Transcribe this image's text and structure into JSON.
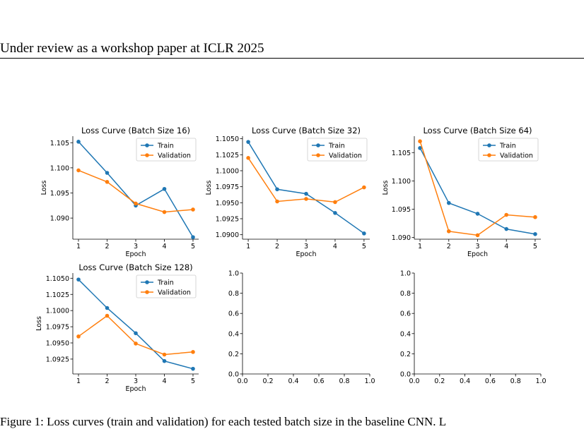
{
  "header": {
    "text": "Under review as a workshop paper at ICLR 2025"
  },
  "caption": {
    "text": "Figure 1: Loss curves (train and validation) for each tested batch size in the baseline CNN. L"
  },
  "colors": {
    "train": "#1f77b4",
    "validation": "#ff7f0e"
  },
  "chart_data": [
    {
      "type": "line",
      "title": "Loss Curve (Batch Size 16)",
      "xlabel": "Epoch",
      "ylabel": "Loss",
      "x": [
        1,
        2,
        3,
        4,
        5
      ],
      "xticks": [
        "1",
        "2",
        "3",
        "4",
        "5"
      ],
      "ylim": [
        1.0858,
        1.1063
      ],
      "yticks": [
        "1.090",
        "1.095",
        "1.100",
        "1.105"
      ],
      "legend_position": "top-right",
      "series": [
        {
          "name": "Train",
          "values": [
            1.1052,
            1.099,
            1.0925,
            1.0958,
            1.0862
          ]
        },
        {
          "name": "Validation",
          "values": [
            1.0995,
            1.0972,
            1.0929,
            1.0912,
            1.0917
          ]
        }
      ]
    },
    {
      "type": "line",
      "title": "Loss Curve (Batch Size 32)",
      "xlabel": "Epoch",
      "ylabel": "Loss",
      "x": [
        1,
        2,
        3,
        4,
        5
      ],
      "xticks": [
        "1",
        "2",
        "3",
        "4",
        "5"
      ],
      "ylim": [
        1.0893,
        1.1054
      ],
      "yticks": [
        "1.0900",
        "1.0925",
        "1.0950",
        "1.0975",
        "1.1000",
        "1.1025",
        "1.1050"
      ],
      "legend_position": "top-right",
      "series": [
        {
          "name": "Train",
          "values": [
            1.1045,
            1.0971,
            1.0964,
            1.0934,
            1.0902
          ]
        },
        {
          "name": "Validation",
          "values": [
            1.102,
            1.0952,
            1.0956,
            1.0951,
            1.0974
          ]
        }
      ]
    },
    {
      "type": "line",
      "title": "Loss Curve (Batch Size 64)",
      "xlabel": "Epoch",
      "ylabel": "Loss",
      "x": [
        1,
        2,
        3,
        4,
        5
      ],
      "xticks": [
        "1",
        "2",
        "3",
        "4",
        "5"
      ],
      "ylim": [
        1.0897,
        1.1079
      ],
      "yticks": [
        "1.090",
        "1.095",
        "1.100",
        "1.105"
      ],
      "legend_position": "top-right",
      "series": [
        {
          "name": "Train",
          "values": [
            1.1058,
            1.0961,
            1.0942,
            1.0915,
            1.0906
          ]
        },
        {
          "name": "Validation",
          "values": [
            1.107,
            1.0911,
            1.0904,
            1.094,
            1.0936
          ]
        }
      ]
    },
    {
      "type": "line",
      "title": "Loss Curve (Batch Size 128)",
      "xlabel": "Epoch",
      "ylabel": "Loss",
      "x": [
        1,
        2,
        3,
        4,
        5
      ],
      "xticks": [
        "1",
        "2",
        "3",
        "4",
        "5"
      ],
      "ylim": [
        1.0902,
        1.1058
      ],
      "yticks": [
        "1.0925",
        "1.0950",
        "1.0975",
        "1.1000",
        "1.1025",
        "1.1050"
      ],
      "legend_position": "top-right",
      "series": [
        {
          "name": "Train",
          "values": [
            1.1048,
            1.1004,
            1.0965,
            1.0922,
            1.091
          ]
        },
        {
          "name": "Validation",
          "values": [
            1.096,
            1.0992,
            1.0949,
            1.0932,
            1.0936
          ]
        }
      ]
    },
    {
      "type": "line",
      "title": "",
      "xlabel": "",
      "ylabel": "",
      "xlim": [
        0.0,
        1.0
      ],
      "ylim": [
        0.0,
        1.0
      ],
      "xticks": [
        "0.0",
        "0.2",
        "0.4",
        "0.6",
        "0.8",
        "1.0"
      ],
      "yticks": [
        "0.0",
        "0.2",
        "0.4",
        "0.6",
        "0.8",
        "1.0"
      ],
      "series": []
    },
    {
      "type": "line",
      "title": "",
      "xlabel": "",
      "ylabel": "",
      "xlim": [
        0.0,
        1.0
      ],
      "ylim": [
        0.0,
        1.0
      ],
      "xticks": [
        "0.0",
        "0.2",
        "0.4",
        "0.6",
        "0.8",
        "1.0"
      ],
      "yticks": [
        "0.0",
        "0.2",
        "0.4",
        "0.6",
        "0.8",
        "1.0"
      ],
      "series": []
    }
  ]
}
